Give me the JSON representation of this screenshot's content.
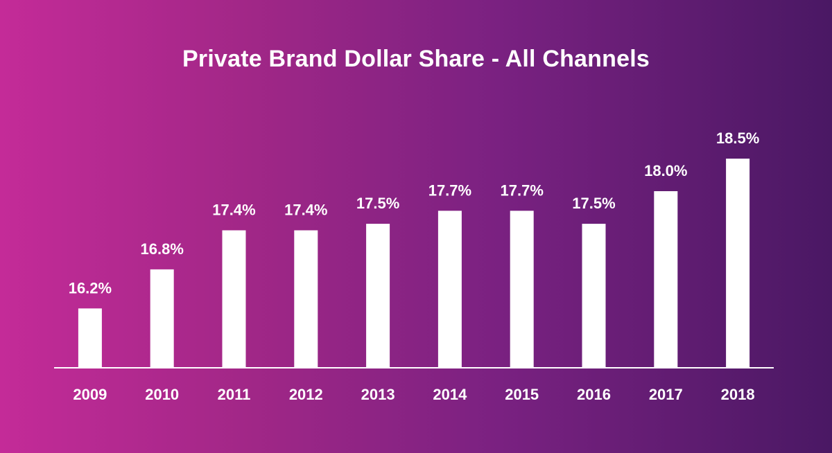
{
  "chart_data": {
    "type": "bar",
    "title": "Private Brand Dollar Share - All Channels",
    "categories": [
      "2009",
      "2010",
      "2011",
      "2012",
      "2013",
      "2014",
      "2015",
      "2016",
      "2017",
      "2018"
    ],
    "values": [
      16.2,
      16.8,
      17.4,
      17.4,
      17.5,
      17.7,
      17.7,
      17.5,
      18.0,
      18.5
    ],
    "data_labels": [
      "16.2%",
      "16.8%",
      "17.4%",
      "17.4%",
      "17.5%",
      "17.7%",
      "17.7%",
      "17.5%",
      "18.0%",
      "18.5%"
    ],
    "ylim": [
      15.3,
      18.5
    ],
    "grid": false,
    "legend": "none",
    "colors": {
      "bar": "#ffffff",
      "text": "#ffffff",
      "background_start": "#c42b98",
      "background_end": "#4a1864"
    }
  }
}
